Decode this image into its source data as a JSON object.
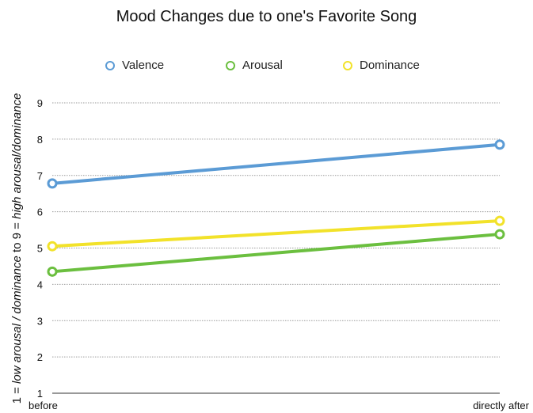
{
  "chart_data": {
    "type": "line",
    "title": "Mood Changes due to one's Favorite Song",
    "ylabel": {
      "part1": "1 = ",
      "part2": "low arousal / dominance",
      "part3": " to 9 = ",
      "part4": "high arousal/dominance"
    },
    "xlabel": "",
    "categories": [
      "before",
      "directly after"
    ],
    "ylim": [
      1,
      9
    ],
    "yticks": [
      1,
      2,
      3,
      4,
      5,
      6,
      7,
      8,
      9
    ],
    "grid": true,
    "legend_position": "top",
    "series": [
      {
        "name": "Valence",
        "color": "#5b9bd5",
        "values": [
          6.78,
          7.85
        ]
      },
      {
        "name": "Arousal",
        "color": "#6bbf3f",
        "values": [
          4.35,
          5.38
        ]
      },
      {
        "name": "Dominance",
        "color": "#f2e22a",
        "values": [
          5.05,
          5.75
        ]
      }
    ]
  }
}
